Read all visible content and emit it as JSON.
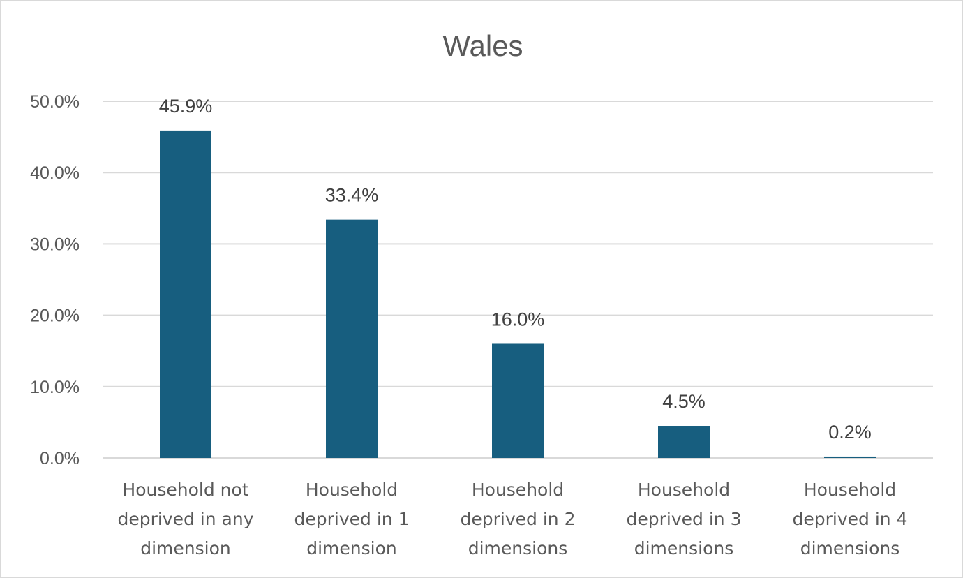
{
  "chart_data": {
    "type": "bar",
    "title": "Wales",
    "categories": [
      [
        "Household not",
        "deprived in any",
        "dimension"
      ],
      [
        "Household",
        "deprived in 1",
        "dimension"
      ],
      [
        "Household",
        "deprived in 2",
        "dimensions"
      ],
      [
        "Household",
        "deprived in 3",
        "dimensions"
      ],
      [
        "Household",
        "deprived in 4",
        "dimensions"
      ]
    ],
    "values": [
      45.9,
      33.4,
      16.0,
      4.5,
      0.2
    ],
    "data_labels": [
      "45.9%",
      "33.4%",
      "16.0%",
      "4.5%",
      "0.2%"
    ],
    "y_ticks": [
      0,
      10,
      20,
      30,
      40,
      50
    ],
    "y_tick_labels": [
      "0.0%",
      "10.0%",
      "20.0%",
      "30.0%",
      "40.0%",
      "50.0%"
    ],
    "ylim": [
      0,
      50
    ],
    "xlabel": "",
    "ylabel": "",
    "grid": true,
    "legend": "none",
    "bar_color": "#175e7f"
  }
}
